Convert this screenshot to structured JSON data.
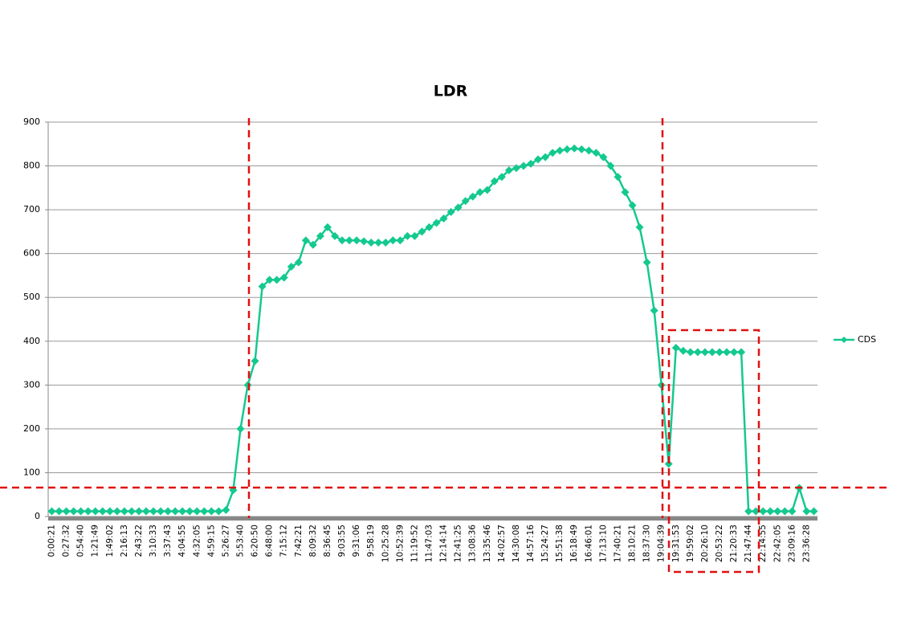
{
  "chart_data": {
    "type": "line",
    "title": "LDR",
    "categories": [
      "0:00:21",
      null,
      "0:27:32",
      null,
      "0:54:40",
      null,
      "1:21:49",
      null,
      "1:49:02",
      null,
      "2:16:13",
      null,
      "2:43:22",
      null,
      "3:10:33",
      null,
      "3:37:43",
      null,
      "4:04:55",
      null,
      "4:32:05",
      null,
      "4:59:15",
      null,
      "5:26:27",
      null,
      "5:53:40",
      null,
      "6:20:50",
      null,
      "6:48:00",
      null,
      "7:15:12",
      null,
      "7:42:21",
      null,
      "8:09:32",
      null,
      "8:36:45",
      null,
      "9:03:55",
      null,
      "9:31:06",
      null,
      "9:58:19",
      null,
      "10:25:28",
      null,
      "10:52:39",
      null,
      "11:19:52",
      null,
      "11:47:03",
      null,
      "12:14:14",
      null,
      "12:41:25",
      null,
      "13:08:36",
      null,
      "13:35:46",
      null,
      "14:02:57",
      null,
      "14:30:08",
      null,
      "14:57:16",
      null,
      "15:24:27",
      null,
      "15:51:38",
      null,
      "16:18:49",
      null,
      "16:46:01",
      null,
      "17:13:10",
      null,
      "17:40:21",
      null,
      "18:10:21",
      null,
      "18:37:30",
      null,
      "19:04:39",
      null,
      "19:31:53",
      null,
      "19:59:02",
      null,
      "20:26:10",
      null,
      "20:53:22",
      null,
      "21:20:33",
      null,
      "21:47:44",
      null,
      "22:14:55",
      null,
      "22:42:05",
      null,
      "23:09:16",
      null,
      "23:36:28",
      null
    ],
    "series": [
      {
        "name": "CDS",
        "color": "#14c98f",
        "values": [
          12,
          12,
          12,
          12,
          12,
          12,
          12,
          12,
          12,
          12,
          12,
          12,
          12,
          12,
          12,
          12,
          12,
          12,
          12,
          12,
          12,
          12,
          12,
          12,
          15,
          60,
          200,
          300,
          355,
          525,
          540,
          540,
          545,
          570,
          580,
          630,
          620,
          640,
          660,
          640,
          630,
          630,
          630,
          628,
          625,
          625,
          625,
          630,
          630,
          640,
          640,
          650,
          660,
          670,
          680,
          695,
          705,
          720,
          730,
          740,
          745,
          765,
          775,
          790,
          795,
          800,
          805,
          815,
          820,
          830,
          835,
          838,
          840,
          838,
          835,
          830,
          820,
          800,
          775,
          740,
          710,
          660,
          580,
          470,
          300,
          120,
          385,
          378,
          375,
          375,
          375,
          375,
          375,
          375,
          375,
          375,
          12,
          12,
          12,
          12,
          12,
          12,
          12,
          65,
          12,
          12
        ]
      }
    ],
    "ylim": [
      0,
      900
    ],
    "yticks": [
      0,
      100,
      200,
      300,
      400,
      500,
      600,
      700,
      800,
      900
    ],
    "grid": true,
    "legend": "right"
  }
}
